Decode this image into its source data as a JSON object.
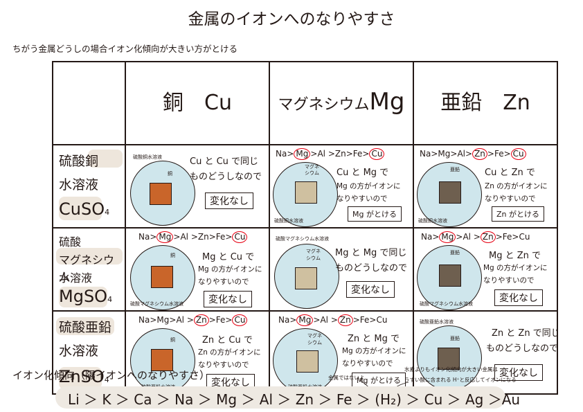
{
  "title": "金属のイオンへのなりやすさ",
  "subtitle": "ちがう金属どうしの場合イオン化傾向が大きい方がとける",
  "columns": [
    "銅　Cu",
    "マグネシウム",
    "Mg",
    "亜鉛　Zn"
  ],
  "rows": [
    {
      "l1": "硫酸銅",
      "l2": "水溶液",
      "formula": "CuSO",
      "sub": "4"
    },
    {
      "l1": "硫酸",
      "l2": "マグネシウム",
      "l2b": "水溶液",
      "formula": "MgSO",
      "sub": "4"
    },
    {
      "l1": "硫酸亜鉛",
      "l2": "水溶液",
      "formula": "ZnSO",
      "sub": "4"
    }
  ],
  "labels": {
    "cu_sol": "硫酸銅水溶液",
    "mg_sol": "硫酸マグネシウム水溶液",
    "zn_sol": "硫酸亜鉛水溶液",
    "cu": "銅",
    "mg1": "マグネ",
    "mg2": "シウム",
    "zn": "亜鉛"
  },
  "seq": {
    "na": "Na",
    "mg": "Mg",
    "al": "Al",
    "zn": "Zn",
    "fe": "Fe",
    "cu": "Cu",
    "gt": ">",
    "gt_sp": " >"
  },
  "cells": {
    "r1c1": {
      "t1": "Cu と Cu で同じ",
      "t2": "ものどうしなので",
      "box": "変化なし"
    },
    "r1c2": {
      "t1": "Cu と Mg で",
      "t2": "Mg の方がイオンに",
      "t3": "なりやすいので",
      "box": "Mg がとける"
    },
    "r1c3": {
      "t1": "Cu と Zn で",
      "t2": "Zn の方がイオンに",
      "t3": "なりやすいので",
      "box": "Zn がとける"
    },
    "r2c1": {
      "t1": "Mg と Cu で",
      "t2": "Mg の方がイオンに",
      "t3": "なりやすいので",
      "box": "変化なし"
    },
    "r2c2": {
      "t1": "Mg と Mg で同じ",
      "t2": "ものどうしなので",
      "box": "変化なし"
    },
    "r2c3": {
      "t1": "Mg と Zn で",
      "t2": "Mg の方がイオンに",
      "t3": "なりやすいので",
      "box": "変化なし"
    },
    "r3c1": {
      "t1": "Zn と Cu で",
      "t2": "Zn の方がイオンに",
      "t3": "なりやすいので",
      "box": "変化なし"
    },
    "r3c2": {
      "t1": "Zn と Mg で",
      "t2": "Mg の方がイオンに",
      "t3": "なりやすいので",
      "box": "Mg がとける"
    },
    "r3c3": {
      "t1": "Zn と Zn で同じ",
      "t2": "ものどうしなので",
      "box": "変化なし"
    }
  },
  "series": {
    "title": "イオン化傾向（陽イオンへのなりやすさ）",
    "note1": "金属ではないよ",
    "note2": "水素よりもイオン化傾向が大きい金属は",
    "note3": "うすい酸に含まれる H⁺と反応してイオンになる",
    "text": "Li ＞ K ＞ Ca ＞ Na ＞ Mg ＞ Al ＞ Zn ＞ Fe ＞ (H₂) ＞ Cu ＞ Ag ＞Au"
  }
}
